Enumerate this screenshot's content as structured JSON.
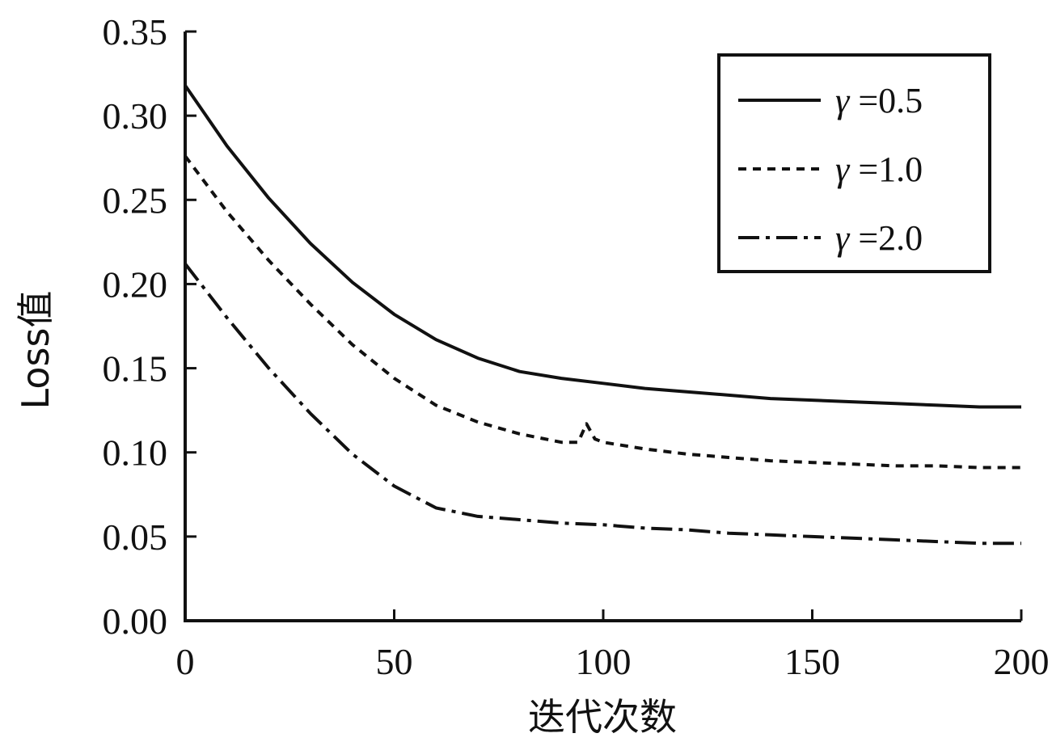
{
  "chart_data": {
    "type": "line",
    "title": "",
    "xlabel": "迭代次数",
    "ylabel": "Loss值",
    "xlim": [
      0,
      200
    ],
    "ylim": [
      0,
      0.35
    ],
    "x_ticks": [
      "0",
      "50",
      "100",
      "150",
      "200"
    ],
    "y_ticks": [
      "0.00",
      "0.05",
      "0.10",
      "0.15",
      "0.20",
      "0.25",
      "0.30",
      "0.35"
    ],
    "grid": false,
    "legend_position": "top-right",
    "series": [
      {
        "name": "γ =0.5",
        "symbol": "γ",
        "value_label": " =0.5",
        "line_style": "solid",
        "color": "#111111",
        "x": [
          0,
          10,
          20,
          30,
          40,
          50,
          60,
          70,
          80,
          90,
          100,
          110,
          120,
          130,
          140,
          150,
          160,
          170,
          180,
          190,
          200
        ],
        "y": [
          0.318,
          0.282,
          0.251,
          0.224,
          0.201,
          0.182,
          0.167,
          0.156,
          0.148,
          0.144,
          0.141,
          0.138,
          0.136,
          0.134,
          0.132,
          0.131,
          0.13,
          0.129,
          0.128,
          0.127,
          0.127
        ]
      },
      {
        "name": "γ =1.0",
        "symbol": "γ",
        "value_label": " =1.0",
        "line_style": "dashed",
        "color": "#111111",
        "x": [
          0,
          10,
          20,
          30,
          40,
          50,
          60,
          70,
          80,
          90,
          94,
          96,
          98,
          100,
          110,
          120,
          130,
          140,
          150,
          160,
          170,
          180,
          190,
          200
        ],
        "y": [
          0.276,
          0.243,
          0.214,
          0.188,
          0.164,
          0.144,
          0.128,
          0.118,
          0.111,
          0.106,
          0.106,
          0.117,
          0.108,
          0.106,
          0.102,
          0.099,
          0.097,
          0.095,
          0.094,
          0.093,
          0.092,
          0.092,
          0.091,
          0.091
        ]
      },
      {
        "name": "γ =2.0",
        "symbol": "γ",
        "value_label": " =2.0",
        "line_style": "dash-dot",
        "color": "#111111",
        "x": [
          0,
          10,
          20,
          30,
          40,
          50,
          60,
          70,
          80,
          90,
          100,
          110,
          120,
          130,
          140,
          150,
          160,
          170,
          180,
          190,
          200
        ],
        "y": [
          0.212,
          0.18,
          0.15,
          0.123,
          0.099,
          0.08,
          0.067,
          0.062,
          0.06,
          0.058,
          0.057,
          0.055,
          0.054,
          0.052,
          0.051,
          0.05,
          0.049,
          0.048,
          0.047,
          0.046,
          0.046
        ]
      }
    ]
  }
}
